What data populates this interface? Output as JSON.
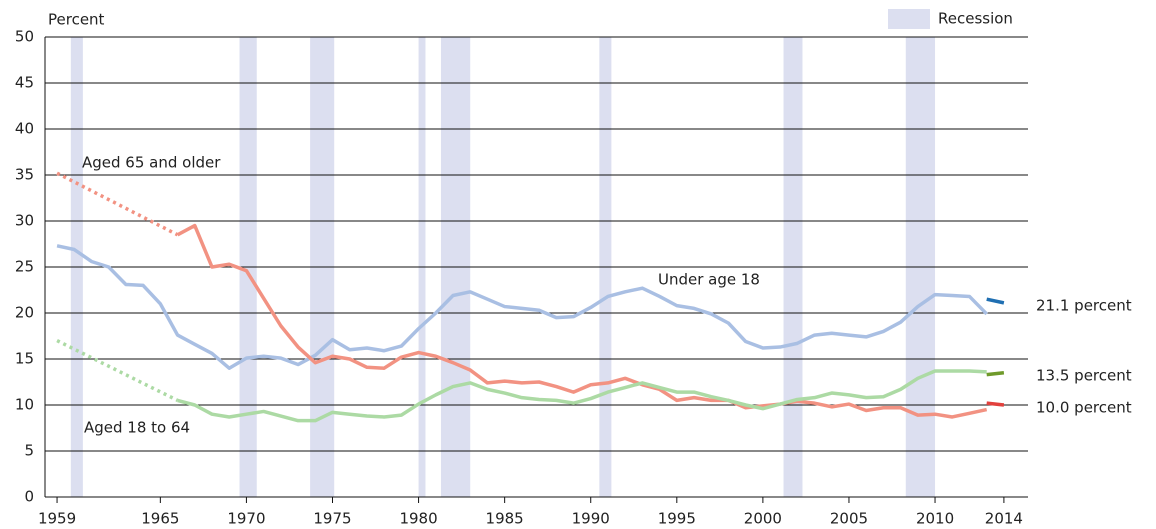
{
  "chart_data": {
    "type": "line",
    "y_label": "Percent",
    "xlim": [
      1958.3,
      2015.4
    ],
    "xticks": [
      1959,
      1965,
      1970,
      1975,
      1980,
      1985,
      1990,
      1995,
      2000,
      2005,
      2010,
      2014
    ],
    "ylim": [
      0,
      50
    ],
    "yticks": [
      0,
      5,
      10,
      15,
      20,
      25,
      30,
      35,
      40,
      45,
      50
    ],
    "grid": true,
    "recession": {
      "label": "Recession",
      "color": "#dcdff0",
      "periods": [
        [
          1959.8,
          1960.5
        ],
        [
          1969.6,
          1970.6
        ],
        [
          1973.7,
          1975.1
        ],
        [
          1980.0,
          1980.4
        ],
        [
          1981.3,
          1983.0
        ],
        [
          1990.5,
          1991.2
        ],
        [
          2001.2,
          2002.3
        ],
        [
          2008.3,
          2010.0
        ]
      ]
    },
    "series": [
      {
        "name": "Under age 18",
        "color": "#a9bfe3",
        "x": [
          1959,
          1960,
          1961,
          1962,
          1963,
          1964,
          1965,
          1966,
          1967,
          1968,
          1969,
          1970,
          1971,
          1972,
          1973,
          1974,
          1975,
          1976,
          1977,
          1978,
          1979,
          1980,
          1981,
          1982,
          1983,
          1984,
          1985,
          1986,
          1987,
          1988,
          1989,
          1990,
          1991,
          1992,
          1993,
          1994,
          1995,
          1996,
          1997,
          1998,
          1999,
          2000,
          2001,
          2002,
          2003,
          2004,
          2005,
          2006,
          2007,
          2008,
          2009,
          2010,
          2011,
          2012,
          2013
        ],
        "values": [
          27.3,
          26.9,
          25.6,
          25.0,
          23.1,
          23.0,
          21.0,
          17.6,
          16.6,
          15.6,
          14.0,
          15.1,
          15.3,
          15.1,
          14.4,
          15.4,
          17.1,
          16.0,
          16.2,
          15.9,
          16.4,
          18.3,
          20.0,
          21.9,
          22.3,
          21.5,
          20.7,
          20.5,
          20.3,
          19.5,
          19.6,
          20.6,
          21.8,
          22.3,
          22.7,
          21.8,
          20.8,
          20.5,
          19.9,
          18.9,
          16.9,
          16.2,
          16.3,
          16.7,
          17.6,
          17.8,
          17.6,
          17.4,
          18.0,
          19.0,
          20.7,
          22.0,
          21.9,
          21.8,
          19.9
        ]
      },
      {
        "color": "#f29282",
        "dashed": true,
        "x": [
          1959,
          1966
        ],
        "values": [
          35.2,
          28.5
        ]
      },
      {
        "name": "Aged 65 and older",
        "color": "#f29282",
        "x": [
          1966,
          1967,
          1968,
          1969,
          1970,
          1971,
          1972,
          1973,
          1974,
          1975,
          1976,
          1977,
          1978,
          1979,
          1980,
          1981,
          1982,
          1983,
          1984,
          1985,
          1986,
          1987,
          1988,
          1989,
          1990,
          1991,
          1992,
          1993,
          1994,
          1995,
          1996,
          1997,
          1998,
          1999,
          2000,
          2001,
          2002,
          2003,
          2004,
          2005,
          2006,
          2007,
          2008,
          2009,
          2010,
          2011,
          2012,
          2013
        ],
        "values": [
          28.5,
          29.5,
          25.0,
          25.3,
          24.6,
          21.6,
          18.6,
          16.3,
          14.6,
          15.3,
          15.0,
          14.1,
          14.0,
          15.2,
          15.7,
          15.3,
          14.6,
          13.8,
          12.4,
          12.6,
          12.4,
          12.5,
          12.0,
          11.4,
          12.2,
          12.4,
          12.9,
          12.2,
          11.7,
          10.5,
          10.8,
          10.5,
          10.5,
          9.7,
          9.9,
          10.1,
          10.4,
          10.2,
          9.8,
          10.1,
          9.4,
          9.7,
          9.7,
          8.9,
          9.0,
          8.7,
          9.1,
          9.5
        ]
      },
      {
        "color": "#acdaa4",
        "dashed": true,
        "x": [
          1959,
          1966
        ],
        "values": [
          17.0,
          10.5
        ]
      },
      {
        "name": "Aged 18 to 64",
        "color": "#acdaa4",
        "x": [
          1966,
          1967,
          1968,
          1969,
          1970,
          1971,
          1972,
          1973,
          1974,
          1975,
          1976,
          1977,
          1978,
          1979,
          1980,
          1981,
          1982,
          1983,
          1984,
          1985,
          1986,
          1987,
          1988,
          1989,
          1990,
          1991,
          1992,
          1993,
          1994,
          1995,
          1996,
          1997,
          1998,
          1999,
          2000,
          2001,
          2002,
          2003,
          2004,
          2005,
          2006,
          2007,
          2008,
          2009,
          2010,
          2011,
          2012,
          2013
        ],
        "values": [
          10.5,
          10.0,
          9.0,
          8.7,
          9.0,
          9.3,
          8.8,
          8.3,
          8.3,
          9.2,
          9.0,
          8.8,
          8.7,
          8.9,
          10.1,
          11.1,
          12.0,
          12.4,
          11.7,
          11.3,
          10.8,
          10.6,
          10.5,
          10.2,
          10.7,
          11.4,
          11.9,
          12.4,
          11.9,
          11.4,
          11.4,
          10.9,
          10.5,
          10.0,
          9.6,
          10.1,
          10.6,
          10.8,
          11.3,
          11.1,
          10.8,
          10.9,
          11.7,
          12.9,
          13.7,
          13.7,
          13.7,
          13.6
        ]
      },
      {
        "color": "#1f6fb2",
        "x": [
          2013,
          2014
        ],
        "values": [
          21.5,
          21.1
        ],
        "end_label": "21.1 percent"
      },
      {
        "color": "#6f9a2a",
        "x": [
          2013,
          2014
        ],
        "values": [
          13.3,
          13.5
        ],
        "end_label": "13.5 percent"
      },
      {
        "color": "#e2403c",
        "x": [
          2013,
          2014
        ],
        "values": [
          10.2,
          10.0
        ],
        "end_label": "10.0 percent"
      }
    ]
  }
}
